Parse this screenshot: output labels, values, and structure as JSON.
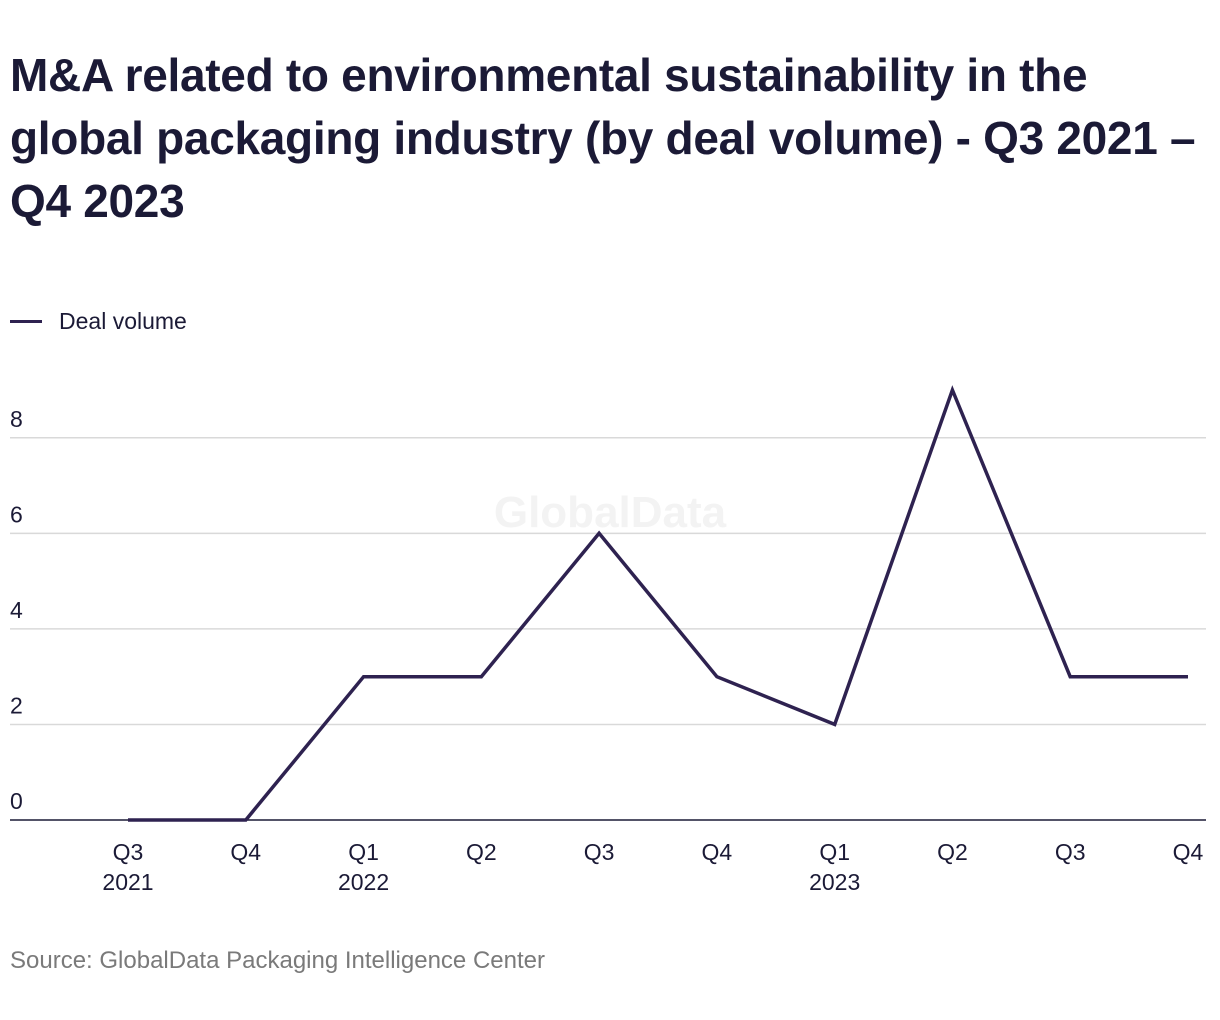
{
  "page": {
    "title": "M&A related to environmental sustainability in the global packaging industry (by deal volume) - Q3 2021 – Q4 2023",
    "source": "Source: GlobalData Packaging Intelligence Center",
    "watermark": "GlobalData"
  },
  "chart_data": {
    "type": "line",
    "title": "M&A related to environmental sustainability in the global packaging industry (by deal volume) - Q3 2021 – Q4 2023",
    "xlabel": "",
    "ylabel": "",
    "categories": [
      "Q3 2021",
      "Q4 2021",
      "Q1 2022",
      "Q2 2022",
      "Q3 2022",
      "Q4 2022",
      "Q1 2023",
      "Q2 2023",
      "Q3 2023",
      "Q4 2023"
    ],
    "x_tick_labels": [
      {
        "quarter": "Q3",
        "year": "2021"
      },
      {
        "quarter": "Q4",
        "year": ""
      },
      {
        "quarter": "Q1",
        "year": "2022"
      },
      {
        "quarter": "Q2",
        "year": ""
      },
      {
        "quarter": "Q3",
        "year": ""
      },
      {
        "quarter": "Q4",
        "year": ""
      },
      {
        "quarter": "Q1",
        "year": "2023"
      },
      {
        "quarter": "Q2",
        "year": ""
      },
      {
        "quarter": "Q3",
        "year": ""
      },
      {
        "quarter": "Q4",
        "year": ""
      }
    ],
    "series": [
      {
        "name": "Deal volume",
        "values": [
          0,
          0,
          3,
          3,
          6,
          3,
          2,
          9,
          3,
          3
        ]
      }
    ],
    "ylim": [
      0,
      9
    ],
    "y_ticks": [
      0,
      2,
      4,
      6,
      8
    ],
    "grid": true,
    "legend_position": "top-left",
    "colors": {
      "line": "#2e2250",
      "grid": "#d9d9d9",
      "axis": "#1b1a36",
      "text": "#1b1a36",
      "source": "#7a7a7a"
    }
  }
}
